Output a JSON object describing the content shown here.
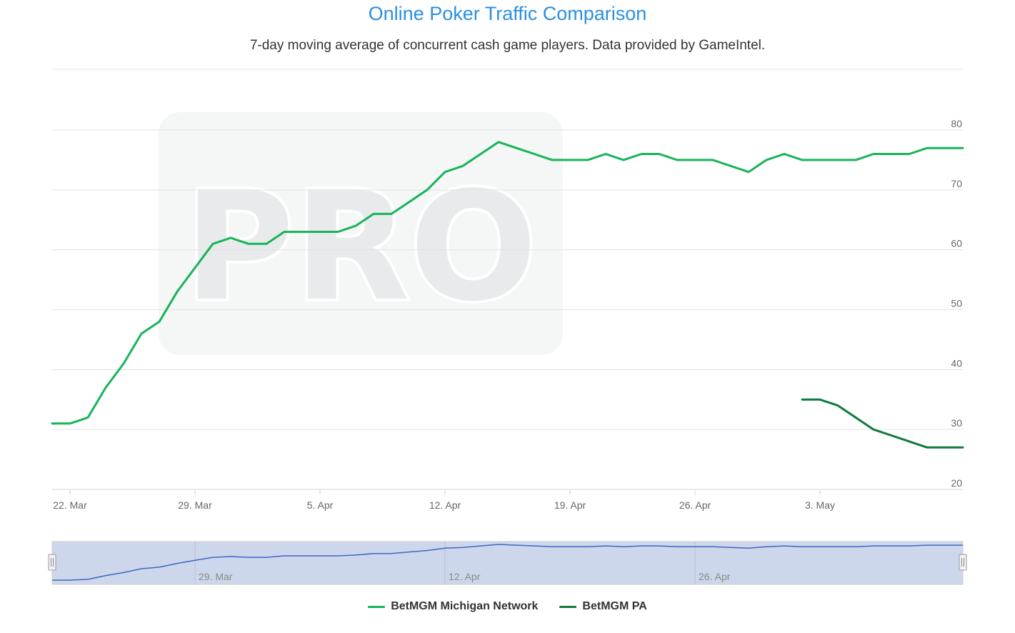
{
  "chart_data": {
    "type": "line",
    "title": "Online Poker Traffic Comparison",
    "subtitle": "7-day moving average of concurrent cash game players. Data provided by GameIntel.",
    "watermark": "PRO",
    "x_start": "2021-03-21",
    "x_end": "2021-05-11",
    "x_ticks": [
      {
        "date": "2021-03-22",
        "label": "22. Mar"
      },
      {
        "date": "2021-03-29",
        "label": "29. Mar"
      },
      {
        "date": "2021-04-05",
        "label": "5. Apr"
      },
      {
        "date": "2021-04-12",
        "label": "12. Apr"
      },
      {
        "date": "2021-04-19",
        "label": "19. Apr"
      },
      {
        "date": "2021-04-26",
        "label": "26. Apr"
      },
      {
        "date": "2021-05-03",
        "label": "3. May"
      }
    ],
    "navigator_ticks": [
      {
        "date": "2021-03-29",
        "label": "29. Mar"
      },
      {
        "date": "2021-04-12",
        "label": "12. Apr"
      },
      {
        "date": "2021-04-26",
        "label": "26. Apr"
      }
    ],
    "ylim": [
      20,
      80
    ],
    "y_ticks": [
      20,
      30,
      40,
      50,
      60,
      70,
      80
    ],
    "grid": true,
    "legend_position": "bottom-center",
    "series": [
      {
        "name": "BetMGM Michigan Network",
        "color": "#17b45a",
        "x": [
          "2021-03-21",
          "2021-03-22",
          "2021-03-23",
          "2021-03-24",
          "2021-03-25",
          "2021-03-26",
          "2021-03-27",
          "2021-03-28",
          "2021-03-29",
          "2021-03-30",
          "2021-03-31",
          "2021-04-01",
          "2021-04-02",
          "2021-04-03",
          "2021-04-04",
          "2021-04-05",
          "2021-04-06",
          "2021-04-07",
          "2021-04-08",
          "2021-04-09",
          "2021-04-10",
          "2021-04-11",
          "2021-04-12",
          "2021-04-13",
          "2021-04-14",
          "2021-04-15",
          "2021-04-16",
          "2021-04-17",
          "2021-04-18",
          "2021-04-19",
          "2021-04-20",
          "2021-04-21",
          "2021-04-22",
          "2021-04-23",
          "2021-04-24",
          "2021-04-25",
          "2021-04-26",
          "2021-04-27",
          "2021-04-28",
          "2021-04-29",
          "2021-04-30",
          "2021-05-01",
          "2021-05-02",
          "2021-05-03",
          "2021-05-04",
          "2021-05-05",
          "2021-05-06",
          "2021-05-07",
          "2021-05-08",
          "2021-05-09",
          "2021-05-10",
          "2021-05-11"
        ],
        "values": [
          31,
          31,
          32,
          37,
          41,
          46,
          48,
          53,
          57,
          61,
          62,
          61,
          61,
          63,
          63,
          63,
          63,
          64,
          66,
          66,
          68,
          70,
          73,
          74,
          76,
          78,
          77,
          76,
          75,
          75,
          75,
          76,
          75,
          76,
          76,
          75,
          75,
          75,
          74,
          73,
          75,
          76,
          75,
          75,
          75,
          75,
          76,
          76,
          76,
          77,
          77,
          77
        ]
      },
      {
        "name": "BetMGM PA",
        "color": "#0f7a3d",
        "x": [
          "2021-05-02",
          "2021-05-03",
          "2021-05-04",
          "2021-05-05",
          "2021-05-06",
          "2021-05-07",
          "2021-05-08",
          "2021-05-09",
          "2021-05-10",
          "2021-05-11"
        ],
        "values": [
          35,
          35,
          34,
          32,
          30,
          29,
          28,
          27,
          27,
          27
        ]
      }
    ]
  }
}
